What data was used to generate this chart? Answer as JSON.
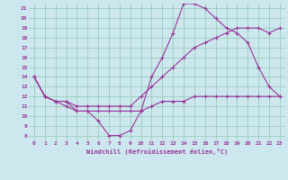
{
  "xlabel": "Windchill (Refroidissement éolien,°C)",
  "bg_color": "#cce8ee",
  "grid_color": "#99ccbb",
  "line_color": "#993399",
  "xlim": [
    -0.5,
    23.5
  ],
  "ylim": [
    7.5,
    21.5
  ],
  "yticks": [
    8,
    9,
    10,
    11,
    12,
    13,
    14,
    15,
    16,
    17,
    18,
    19,
    20,
    21
  ],
  "xticks": [
    0,
    1,
    2,
    3,
    4,
    5,
    6,
    7,
    8,
    9,
    10,
    11,
    12,
    13,
    14,
    15,
    16,
    17,
    18,
    19,
    20,
    21,
    22,
    23
  ],
  "series": [
    {
      "x": [
        0,
        1,
        2,
        3,
        4,
        5,
        6,
        7,
        8,
        9,
        10,
        11,
        12,
        13,
        14,
        15,
        16,
        17,
        18,
        19,
        20,
        21,
        22,
        23
      ],
      "y": [
        14,
        12,
        11.5,
        11.5,
        10.5,
        10.5,
        9.5,
        8,
        8,
        8.5,
        10.5,
        14,
        16,
        18.5,
        21.5,
        21.5,
        21,
        20,
        19,
        18.5,
        17.5,
        15,
        13,
        12
      ]
    },
    {
      "x": [
        0,
        1,
        2,
        3,
        4,
        5,
        6,
        7,
        8,
        9,
        10,
        11,
        12,
        13,
        14,
        15,
        16,
        17,
        18,
        19,
        20,
        21,
        22,
        23
      ],
      "y": [
        14,
        12,
        11.5,
        11.5,
        11,
        11,
        11,
        11,
        11,
        11,
        12,
        13,
        14,
        15,
        16,
        17,
        17.5,
        18,
        18.5,
        19,
        19,
        19,
        18.5,
        19
      ]
    },
    {
      "x": [
        0,
        1,
        2,
        3,
        4,
        5,
        6,
        7,
        8,
        9,
        10,
        11,
        12,
        13,
        14,
        15,
        16,
        17,
        18,
        19,
        20,
        21,
        22,
        23
      ],
      "y": [
        14,
        12,
        11.5,
        11,
        10.5,
        10.5,
        10.5,
        10.5,
        10.5,
        10.5,
        10.5,
        11,
        11.5,
        11.5,
        11.5,
        12,
        12,
        12,
        12,
        12,
        12,
        12,
        12,
        12
      ]
    }
  ]
}
